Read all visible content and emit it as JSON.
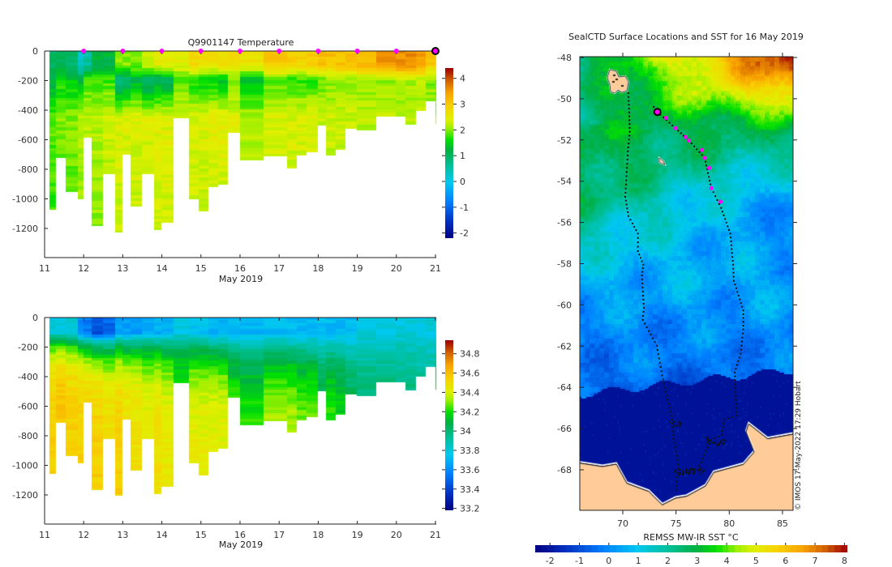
{
  "chart_data": [
    {
      "type": "heatmap",
      "name": "temperature-section",
      "title": "Q9901147  Temperature",
      "xlabel": "May 2019",
      "ylabel": "",
      "xlim": [
        11,
        21.05
      ],
      "ylim": [
        -1400,
        0
      ],
      "x_ticks": [
        "11",
        "12",
        "13",
        "14",
        "15",
        "16",
        "17",
        "18",
        "19",
        "20",
        "21"
      ],
      "y_ticks": [
        "0",
        "-200",
        "-400",
        "-600",
        "-800",
        "-1000",
        "-1200"
      ],
      "colorbar": {
        "range": [
          -2.2,
          4.4
        ],
        "ticks": [
          "4",
          "3",
          "2",
          "1",
          "0",
          "-1",
          "-2"
        ]
      },
      "profile_marker_days": [
        12,
        13,
        14,
        15,
        16,
        17,
        18,
        19,
        20
      ],
      "current_profile_day": 21,
      "columns_fields": [
        "start_day",
        "end_day",
        "max_depth_m",
        "temp_surface",
        "temp_min",
        "temp_deep"
      ],
      "columns": [
        [
          11.13,
          11.3,
          1070,
          1.0,
          1.2,
          1.9
        ],
        [
          11.3,
          11.55,
          720,
          1.1,
          1.6,
          2.0
        ],
        [
          11.55,
          11.85,
          950,
          0.9,
          1.5,
          2.0
        ],
        [
          11.85,
          12.0,
          1000,
          0.3,
          1.2,
          2.2
        ],
        [
          12.0,
          12.2,
          580,
          0.6,
          1.8,
          2.2
        ],
        [
          12.2,
          12.5,
          1185,
          1.2,
          1.8,
          2.2
        ],
        [
          12.5,
          12.8,
          830,
          1.2,
          1.8,
          2.3
        ],
        [
          12.8,
          13.0,
          1225,
          2.0,
          0.6,
          2.4
        ],
        [
          13.0,
          13.2,
          700,
          2.0,
          0.9,
          2.4
        ],
        [
          13.2,
          13.5,
          1050,
          2.0,
          1.2,
          2.4
        ],
        [
          13.5,
          13.8,
          830,
          2.4,
          0.8,
          2.4
        ],
        [
          13.8,
          14.0,
          1210,
          2.5,
          1.0,
          2.45
        ],
        [
          14.0,
          14.3,
          1160,
          2.5,
          1.0,
          2.45
        ],
        [
          14.3,
          14.7,
          450,
          2.5,
          1.8,
          2.4
        ],
        [
          14.7,
          14.95,
          1000,
          2.8,
          1.6,
          2.4
        ],
        [
          14.95,
          15.2,
          1080,
          2.7,
          1.5,
          2.4
        ],
        [
          15.2,
          15.45,
          920,
          2.7,
          1.5,
          2.45
        ],
        [
          15.45,
          15.7,
          900,
          2.7,
          1.3,
          2.45
        ],
        [
          15.7,
          16.0,
          550,
          2.7,
          1.9,
          2.4
        ],
        [
          16.0,
          16.6,
          735,
          2.6,
          1.3,
          2.2
        ],
        [
          16.6,
          17.2,
          710,
          3.0,
          1.8,
          2.4
        ],
        [
          17.2,
          17.45,
          790,
          2.9,
          1.7,
          2.4
        ],
        [
          17.45,
          17.7,
          705,
          2.9,
          1.7,
          2.4
        ],
        [
          17.7,
          18.0,
          680,
          3.0,
          1.7,
          2.4
        ],
        [
          18.0,
          18.2,
          500,
          3.1,
          1.9,
          2.3
        ],
        [
          18.2,
          18.45,
          705,
          3.1,
          2.0,
          2.3
        ],
        [
          18.45,
          18.7,
          665,
          3.1,
          2.0,
          2.3
        ],
        [
          18.7,
          19.0,
          525,
          3.1,
          2.0,
          2.3
        ],
        [
          19.0,
          19.5,
          535,
          3.2,
          2.1,
          2.2
        ],
        [
          19.5,
          20.0,
          440,
          3.6,
          2.1,
          2.2
        ],
        [
          20.0,
          20.25,
          440,
          3.6,
          2.1,
          2.2
        ],
        [
          20.25,
          20.5,
          495,
          3.6,
          2.1,
          2.2
        ],
        [
          20.5,
          20.75,
          400,
          3.5,
          2.2,
          2.2
        ],
        [
          20.75,
          21.0,
          335,
          3.0,
          2.0,
          2.1
        ],
        [
          21.0,
          21.03,
          490,
          3.0,
          1.8,
          2.1
        ]
      ]
    },
    {
      "type": "heatmap",
      "name": "salinity-section",
      "title": "",
      "xlabel": "May 2019",
      "ylabel": "",
      "xlim": [
        11,
        21.05
      ],
      "ylim": [
        -1400,
        0
      ],
      "x_ticks": [
        "11",
        "12",
        "13",
        "14",
        "15",
        "16",
        "17",
        "18",
        "19",
        "20",
        "21"
      ],
      "y_ticks": [
        "0",
        "-200",
        "-400",
        "-600",
        "-800",
        "-1000",
        "-1200"
      ],
      "colorbar": {
        "range": [
          33.18,
          34.94
        ],
        "ticks": [
          "34.8",
          "34.6",
          "34.4",
          "34.2",
          "34",
          "33.8",
          "33.6",
          "33.4",
          "33.2"
        ]
      },
      "columns_fields": [
        "salinity_surface",
        "salinity_deep"
      ],
      "columns": [
        [
          33.8,
          34.55
        ],
        [
          33.8,
          34.6
        ],
        [
          33.8,
          34.55
        ],
        [
          33.6,
          34.55
        ],
        [
          33.55,
          34.55
        ],
        [
          33.45,
          34.55
        ],
        [
          33.5,
          34.5
        ],
        [
          33.65,
          34.55
        ],
        [
          33.65,
          34.5
        ],
        [
          33.65,
          34.5
        ],
        [
          33.7,
          34.45
        ],
        [
          33.7,
          34.5
        ],
        [
          33.7,
          34.45
        ],
        [
          33.8,
          34.3
        ],
        [
          33.75,
          34.45
        ],
        [
          33.75,
          34.45
        ],
        [
          33.7,
          34.45
        ],
        [
          33.7,
          34.45
        ],
        [
          33.7,
          34.3
        ],
        [
          33.7,
          34.25
        ],
        [
          33.72,
          34.4
        ],
        [
          33.72,
          34.4
        ],
        [
          33.72,
          34.35
        ],
        [
          33.72,
          34.35
        ],
        [
          33.72,
          34.2
        ],
        [
          33.72,
          34.3
        ],
        [
          33.72,
          34.25
        ],
        [
          33.72,
          34.15
        ],
        [
          33.8,
          34.05
        ],
        [
          33.8,
          34.05
        ],
        [
          33.8,
          34.05
        ],
        [
          33.8,
          34.05
        ],
        [
          33.8,
          34.0
        ],
        [
          33.8,
          34.0
        ],
        [
          33.8,
          34.3
        ]
      ]
    },
    {
      "type": "heatmap",
      "name": "sst-map",
      "title": "SealCTD Surface Locations and SST for 16 May 2019",
      "xlim": [
        66,
        86
      ],
      "ylim": [
        -70,
        -48
      ],
      "x_ticks": [
        "70",
        "75",
        "80",
        "85"
      ],
      "y_ticks": [
        "-48",
        "-50",
        "-52",
        "-54",
        "-56",
        "-58",
        "-60",
        "-62",
        "-64",
        "-66",
        "-68"
      ],
      "colorbar": {
        "label": "REMSS MW-IR SST °C",
        "range": [
          -2.5,
          8.1
        ],
        "ticks": [
          "-2",
          "-1",
          "0",
          "1",
          "2",
          "3",
          "4",
          "5",
          "6",
          "7",
          "8"
        ]
      },
      "credit": "© IMOS 17-May-2022 17:29 Hobart",
      "sst_by_latitude": [
        [
          -48,
          5.2
        ],
        [
          -50,
          4.0
        ],
        [
          -51,
          3.0
        ],
        [
          -53,
          2.5
        ],
        [
          -55,
          1.8
        ],
        [
          -57,
          1.0
        ],
        [
          -59,
          0.5
        ],
        [
          -61,
          0.0
        ],
        [
          -63,
          -0.3
        ],
        [
          -64,
          -0.6
        ]
      ],
      "current_location": [
        73.25,
        -50.64
      ],
      "recent_profiles": [
        [
          74.06,
          -50.93
        ],
        [
          74.95,
          -51.43
        ],
        [
          75.89,
          -51.86
        ],
        [
          76.22,
          -52.03
        ],
        [
          77.44,
          -52.49
        ],
        [
          77.69,
          -52.87
        ],
        [
          78.12,
          -53.36
        ],
        [
          78.32,
          -54.34
        ],
        [
          79.19,
          -55.0
        ]
      ],
      "track_west": [
        [
          70.53,
          -49.73
        ],
        [
          70.66,
          -51.6
        ],
        [
          70.48,
          -52.55
        ],
        [
          70.23,
          -54.76
        ],
        [
          70.53,
          -55.69
        ],
        [
          70.91,
          -56.05
        ],
        [
          71.42,
          -56.54
        ],
        [
          71.42,
          -57.39
        ],
        [
          71.93,
          -58.05
        ],
        [
          71.8,
          -58.57
        ],
        [
          71.98,
          -60.14
        ],
        [
          71.88,
          -60.73
        ],
        [
          73.2,
          -61.98
        ],
        [
          73.7,
          -63.42
        ],
        [
          74.21,
          -64.6
        ],
        [
          74.59,
          -65.38
        ],
        [
          74.85,
          -66.69
        ],
        [
          75.23,
          -67.74
        ],
        [
          74.97,
          -69.18
        ]
      ],
      "track_east": [
        [
          72.9,
          -50.4
        ],
        [
          73.25,
          -50.64
        ],
        [
          74.95,
          -51.43
        ],
        [
          76.22,
          -52.03
        ],
        [
          77.69,
          -52.87
        ],
        [
          78.32,
          -54.34
        ],
        [
          79.24,
          -55.3
        ],
        [
          80.1,
          -56.54
        ],
        [
          80.36,
          -58.05
        ],
        [
          80.43,
          -58.83
        ],
        [
          81.32,
          -60.27
        ],
        [
          81.32,
          -61.19
        ],
        [
          81.07,
          -62.37
        ],
        [
          80.51,
          -63.28
        ],
        [
          80.69,
          -65.38
        ],
        [
          79.54,
          -65.58
        ],
        [
          79.29,
          -66.3
        ],
        [
          78.28,
          -66.56
        ],
        [
          77.0,
          -68.0
        ],
        [
          76.0,
          -68.13
        ],
        [
          75.3,
          -68.0
        ]
      ]
    }
  ],
  "colors": {
    "marker": "#ff00ff",
    "land": "#ffcc99",
    "axis": "#222222"
  }
}
